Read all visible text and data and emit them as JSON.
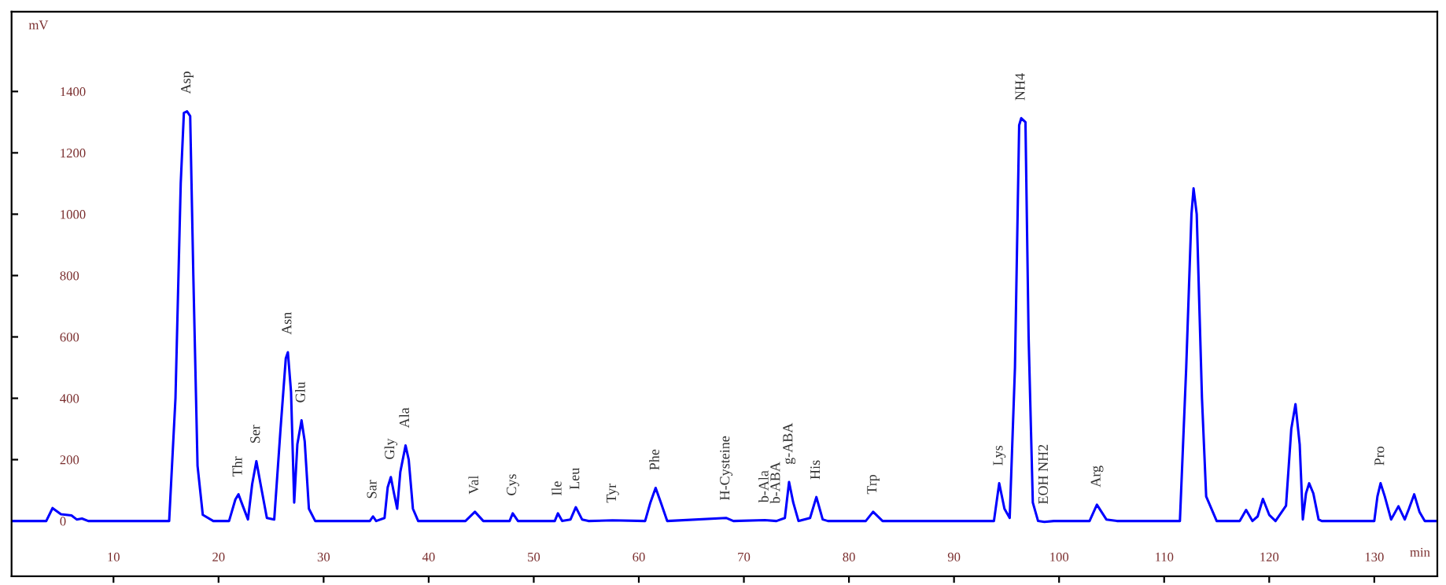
{
  "chart_data": {
    "type": "line",
    "xlabel": "min",
    "ylabel": "mV",
    "x": [
      0.3,
      3.6,
      4.2,
      5.0,
      6.0,
      6.5,
      7.0,
      7.6,
      15.3,
      15.9,
      16.4,
      16.7,
      17.0,
      17.3,
      17.6,
      18.0,
      18.5,
      19.5,
      21.0,
      21.6,
      21.9,
      22.3,
      22.8,
      23.2,
      23.6,
      24.0,
      24.6,
      25.3,
      25.9,
      26.4,
      26.6,
      26.9,
      27.2,
      27.5,
      27.9,
      28.2,
      28.6,
      29.2,
      34.4,
      34.7,
      35.0,
      35.8,
      36.1,
      36.4,
      36.7,
      37.0,
      37.3,
      37.8,
      38.1,
      38.5,
      39.0,
      43.5,
      44.4,
      45.2,
      47.7,
      48.0,
      48.5,
      52.0,
      52.3,
      52.7,
      53.5,
      54.0,
      54.6,
      55.2,
      57.5,
      60.6,
      61.1,
      61.6,
      62.1,
      62.7,
      68.3,
      69.0,
      72.0,
      73.1,
      73.9,
      74.3,
      74.7,
      75.2,
      76.3,
      76.9,
      77.5,
      78.0,
      81.6,
      82.3,
      83.2,
      93.8,
      94.3,
      94.8,
      95.3,
      95.8,
      96.2,
      96.4,
      96.8,
      97.1,
      97.5,
      98.0,
      98.6,
      99.5,
      102.9,
      103.6,
      104.5,
      105.5,
      111.5,
      112.1,
      112.6,
      112.8,
      113.1,
      113.6,
      114.0,
      115.0,
      117.2,
      117.8,
      118.4,
      118.9,
      119.4,
      120.0,
      120.6,
      121.6,
      122.1,
      122.5,
      122.9,
      123.2,
      123.5,
      123.8,
      124.2,
      124.7,
      125.0,
      130.0,
      130.3,
      130.6,
      131.0,
      131.6,
      132.3,
      132.9,
      133.3,
      133.8,
      134.3,
      134.8,
      136.0
    ],
    "series": [
      {
        "color": "#0000ff",
        "values": [
          0,
          0,
          42,
          22,
          18,
          5,
          8,
          0,
          0,
          400,
          1100,
          1330,
          1335,
          1320,
          800,
          180,
          20,
          0,
          0,
          70,
          87,
          50,
          5,
          120,
          195,
          120,
          10,
          5,
          300,
          530,
          550,
          420,
          60,
          250,
          328,
          260,
          40,
          0,
          0,
          15,
          0,
          10,
          110,
          143,
          90,
          40,
          160,
          246,
          200,
          40,
          0,
          0,
          30,
          0,
          0,
          25,
          0,
          0,
          25,
          0,
          5,
          45,
          5,
          0,
          2,
          0,
          60,
          108,
          60,
          0,
          10,
          0,
          3,
          0,
          10,
          127,
          60,
          0,
          10,
          78,
          5,
          0,
          0,
          30,
          0,
          0,
          123,
          40,
          10,
          500,
          1290,
          1313,
          1300,
          600,
          60,
          0,
          -3,
          0,
          0,
          53,
          5,
          0,
          0,
          500,
          1000,
          1084,
          1000,
          400,
          80,
          0,
          0,
          36,
          0,
          15,
          72,
          20,
          0,
          50,
          300,
          381,
          250,
          5,
          90,
          123,
          90,
          5,
          0,
          0,
          80,
          123,
          80,
          5,
          48,
          5,
          40,
          87,
          30,
          0,
          0
        ]
      }
    ],
    "xlim": [
      0.3,
      136
    ],
    "ylim": [
      -180,
      1660
    ],
    "xticks": [
      10,
      20,
      30,
      40,
      50,
      60,
      70,
      80,
      90,
      100,
      110,
      120,
      130
    ],
    "yticks": [
      0,
      200,
      400,
      600,
      800,
      1000,
      1200,
      1400
    ],
    "grid": false,
    "legend": false,
    "marker": "none",
    "line_style": "solid",
    "annotations": [
      {
        "text": "Asp",
        "x": 17.0,
        "y": 1335
      },
      {
        "text": "Thr",
        "x": 21.9,
        "y": 87
      },
      {
        "text": "Ser",
        "x": 23.6,
        "y": 195
      },
      {
        "text": "Asn",
        "x": 26.6,
        "y": 550
      },
      {
        "text": "Glu",
        "x": 27.9,
        "y": 328
      },
      {
        "text": "Sar",
        "x": 34.7,
        "y": 15
      },
      {
        "text": "Gly",
        "x": 36.4,
        "y": 143
      },
      {
        "text": "Ala",
        "x": 37.8,
        "y": 246
      },
      {
        "text": "Val",
        "x": 44.4,
        "y": 30
      },
      {
        "text": "Cys",
        "x": 48.0,
        "y": 25
      },
      {
        "text": "Ile",
        "x": 52.3,
        "y": 25
      },
      {
        "text": "Leu",
        "x": 54.0,
        "y": 45
      },
      {
        "text": "Tyr",
        "x": 57.5,
        "y": 2
      },
      {
        "text": "Phe",
        "x": 61.6,
        "y": 108
      },
      {
        "text": "H-Cysteine",
        "x": 68.3,
        "y": 10
      },
      {
        "text": "b-Ala",
        "x": 72.0,
        "y": 3
      },
      {
        "text": "b-ABA",
        "x": 73.1,
        "y": 0
      },
      {
        "text": "g-ABA",
        "x": 74.3,
        "y": 127
      },
      {
        "text": "His",
        "x": 76.9,
        "y": 78
      },
      {
        "text": "Trp",
        "x": 82.3,
        "y": 30
      },
      {
        "text": "Lys",
        "x": 94.3,
        "y": 123
      },
      {
        "text": "NH4",
        "x": 96.4,
        "y": 1313
      },
      {
        "text": "EOH NH2",
        "x": 98.6,
        "y": -3
      },
      {
        "text": "Arg",
        "x": 103.6,
        "y": 53
      },
      {
        "text": "Pro",
        "x": 130.6,
        "y": 123
      }
    ]
  }
}
